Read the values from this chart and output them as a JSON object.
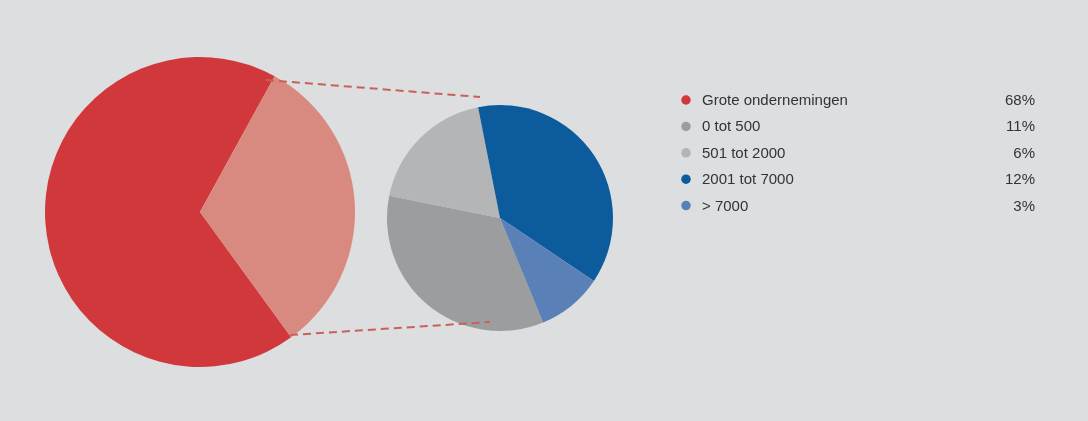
{
  "chart_data": [
    {
      "type": "pie",
      "categories": [
        "Grote ondernemingen",
        null
      ],
      "values": [
        68,
        32
      ],
      "colors": [
        "#d0383c",
        "#d98a80"
      ],
      "value_labels": [
        "68%",
        null
      ],
      "legend": "right"
    },
    {
      "type": "pie",
      "categories": [
        "0 tot 500",
        "501 tot 2000",
        "2001 tot 7000",
        "> 7000"
      ],
      "values": [
        11,
        6,
        12,
        3
      ],
      "colors": [
        "#9b9d9f",
        "#b3b5b7",
        "#0c5b9c",
        "#5a80b8"
      ],
      "value_labels": [
        "11%",
        "6%",
        "12%",
        "3%"
      ],
      "legend": "right"
    }
  ]
}
